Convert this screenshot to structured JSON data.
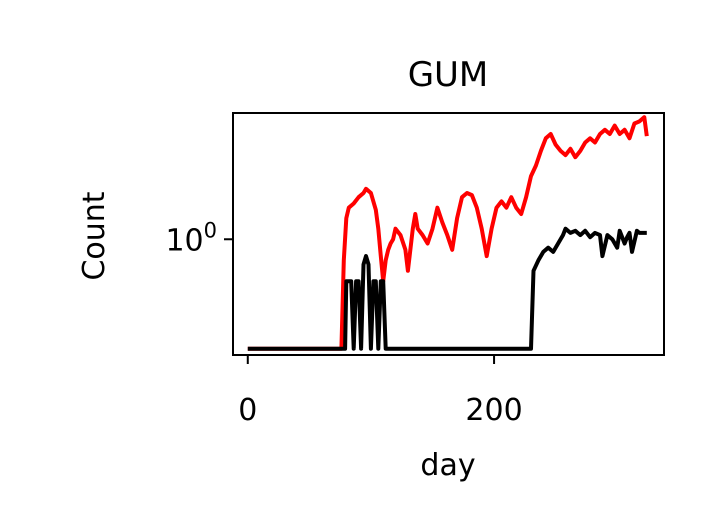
{
  "chart_data": {
    "type": "line",
    "title": "GUM",
    "xlabel": "day",
    "ylabel": "Count",
    "xlim": [
      -12,
      338
    ],
    "xticks": [
      0,
      200
    ],
    "xtick_labels": [
      "0",
      "200"
    ],
    "yscale": "log",
    "ylim_log10": [
      -0.55,
      0.6
    ],
    "yticks_log10": [
      0
    ],
    "ytick_label_base": "10",
    "ytick_label_exp": "0",
    "grid": false,
    "legend": "none",
    "series": [
      {
        "color": "#ff0000",
        "points": [
          [
            0,
            -0.52
          ],
          [
            76,
            -0.52
          ],
          [
            78,
            -0.1
          ],
          [
            80,
            0.1
          ],
          [
            82,
            0.15
          ],
          [
            86,
            0.17
          ],
          [
            90,
            0.2
          ],
          [
            94,
            0.22
          ],
          [
            96,
            0.24
          ],
          [
            100,
            0.22
          ],
          [
            104,
            0.14
          ],
          [
            106,
            0.05
          ],
          [
            108,
            -0.08
          ],
          [
            110,
            -0.2
          ],
          [
            112,
            -0.1
          ],
          [
            114,
            -0.05
          ],
          [
            116,
            -0.02
          ],
          [
            118,
            0.0
          ],
          [
            120,
            0.05
          ],
          [
            124,
            0.02
          ],
          [
            128,
            -0.05
          ],
          [
            130,
            -0.15
          ],
          [
            134,
            0.05
          ],
          [
            136,
            0.12
          ],
          [
            138,
            0.05
          ],
          [
            142,
            0.02
          ],
          [
            146,
            -0.02
          ],
          [
            150,
            0.05
          ],
          [
            154,
            0.15
          ],
          [
            158,
            0.08
          ],
          [
            162,
            0.02
          ],
          [
            166,
            -0.05
          ],
          [
            170,
            0.1
          ],
          [
            174,
            0.2
          ],
          [
            178,
            0.22
          ],
          [
            182,
            0.21
          ],
          [
            186,
            0.15
          ],
          [
            190,
            0.05
          ],
          [
            194,
            -0.08
          ],
          [
            198,
            0.05
          ],
          [
            202,
            0.15
          ],
          [
            206,
            0.18
          ],
          [
            210,
            0.15
          ],
          [
            214,
            0.2
          ],
          [
            218,
            0.15
          ],
          [
            222,
            0.12
          ],
          [
            226,
            0.2
          ],
          [
            230,
            0.3
          ],
          [
            234,
            0.35
          ],
          [
            238,
            0.42
          ],
          [
            242,
            0.48
          ],
          [
            246,
            0.5
          ],
          [
            250,
            0.45
          ],
          [
            254,
            0.42
          ],
          [
            258,
            0.4
          ],
          [
            262,
            0.43
          ],
          [
            266,
            0.39
          ],
          [
            270,
            0.42
          ],
          [
            274,
            0.46
          ],
          [
            278,
            0.48
          ],
          [
            282,
            0.46
          ],
          [
            286,
            0.5
          ],
          [
            290,
            0.52
          ],
          [
            294,
            0.5
          ],
          [
            298,
            0.54
          ],
          [
            302,
            0.5
          ],
          [
            306,
            0.52
          ],
          [
            310,
            0.48
          ],
          [
            314,
            0.55
          ],
          [
            318,
            0.56
          ],
          [
            322,
            0.58
          ],
          [
            324,
            0.49
          ]
        ]
      },
      {
        "color": "#000000",
        "points": [
          [
            0,
            -0.52
          ],
          [
            79,
            -0.52
          ],
          [
            80,
            -0.2
          ],
          [
            84,
            -0.2
          ],
          [
            86,
            -0.52
          ],
          [
            88,
            -0.2
          ],
          [
            90,
            -0.2
          ],
          [
            92,
            -0.52
          ],
          [
            94,
            -0.12
          ],
          [
            96,
            -0.08
          ],
          [
            98,
            -0.12
          ],
          [
            100,
            -0.52
          ],
          [
            102,
            -0.2
          ],
          [
            104,
            -0.2
          ],
          [
            106,
            -0.52
          ],
          [
            108,
            -0.2
          ],
          [
            110,
            -0.2
          ],
          [
            112,
            -0.52
          ],
          [
            230,
            -0.52
          ],
          [
            232,
            -0.15
          ],
          [
            236,
            -0.1
          ],
          [
            240,
            -0.06
          ],
          [
            244,
            -0.04
          ],
          [
            248,
            -0.06
          ],
          [
            252,
            -0.02
          ],
          [
            256,
            0.02
          ],
          [
            258,
            0.05
          ],
          [
            262,
            0.03
          ],
          [
            266,
            0.04
          ],
          [
            270,
            0.02
          ],
          [
            274,
            0.04
          ],
          [
            278,
            0.01
          ],
          [
            282,
            0.03
          ],
          [
            286,
            0.02
          ],
          [
            288,
            -0.08
          ],
          [
            292,
            0.02
          ],
          [
            296,
            0.0
          ],
          [
            300,
            -0.04
          ],
          [
            302,
            0.04
          ],
          [
            306,
            -0.02
          ],
          [
            308,
            0.01
          ],
          [
            310,
            0.03
          ],
          [
            312,
            -0.06
          ],
          [
            316,
            0.04
          ],
          [
            318,
            0.03
          ],
          [
            320,
            0.03
          ],
          [
            324,
            0.03
          ]
        ]
      }
    ]
  }
}
